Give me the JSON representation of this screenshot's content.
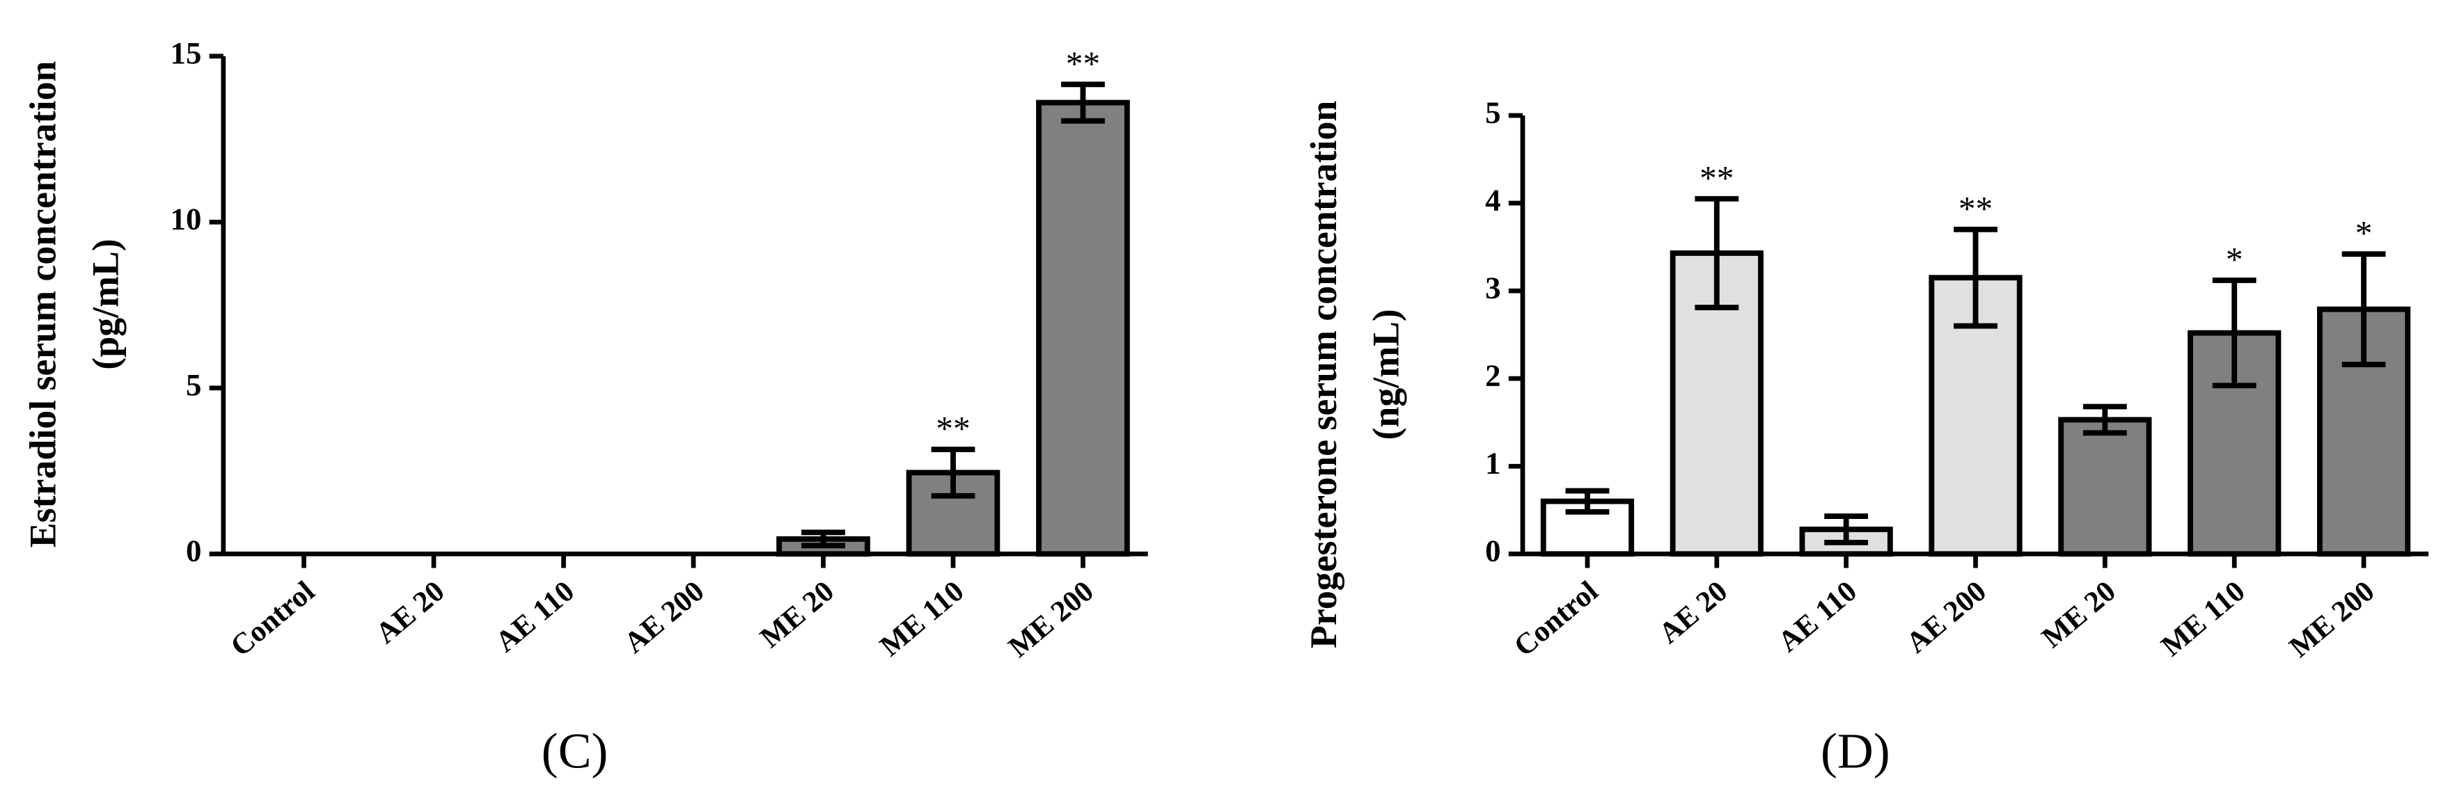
{
  "chart_data": [
    {
      "type": "bar",
      "panel_label": "(C)",
      "ylabel_lines": [
        "Estradiol serum concentration",
        "(pg/mL)"
      ],
      "categories": [
        "Control",
        "AE 20",
        "AE 110",
        "AE 200",
        "ME 20",
        "ME 110",
        "ME 200"
      ],
      "values": [
        0,
        0,
        0,
        0,
        0.45,
        2.45,
        13.6
      ],
      "errors": [
        0,
        0,
        0,
        0,
        0.2,
        0.7,
        0.55
      ],
      "colors": [
        "#ffffff",
        "#e0e0e0",
        "#e0e0e0",
        "#e0e0e0",
        "#808080",
        "#808080",
        "#808080"
      ],
      "significance": [
        null,
        null,
        null,
        null,
        null,
        "**",
        "**"
      ],
      "ylim": [
        0,
        15
      ],
      "yticks": [
        0,
        5,
        10,
        15
      ]
    },
    {
      "type": "bar",
      "panel_label": "(D)",
      "ylabel_lines": [
        "Progesterone serum concentration",
        "(ng/mL)"
      ],
      "categories": [
        "Control",
        "AE 20",
        "AE 110",
        "AE 200",
        "ME 20",
        "ME 110",
        "ME 200"
      ],
      "values": [
        0.6,
        3.43,
        0.28,
        3.15,
        1.53,
        2.52,
        2.79
      ],
      "errors": [
        0.12,
        0.62,
        0.15,
        0.55,
        0.15,
        0.6,
        0.63
      ],
      "colors": [
        "#ffffff",
        "#e0e0e0",
        "#e0e0e0",
        "#e0e0e0",
        "#808080",
        "#808080",
        "#808080"
      ],
      "significance": [
        null,
        "**",
        null,
        "**",
        null,
        "*",
        "*"
      ],
      "ylim": [
        0,
        5
      ],
      "yticks": [
        0,
        1,
        2,
        3,
        4,
        5
      ]
    }
  ]
}
